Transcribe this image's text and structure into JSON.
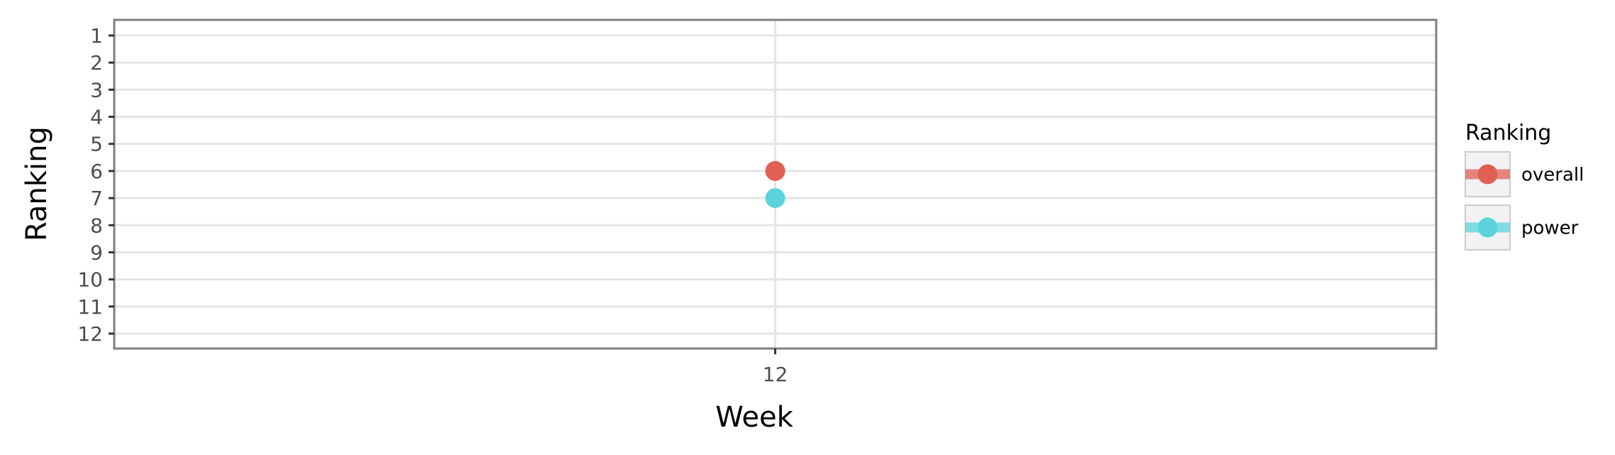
{
  "chart_data": {
    "type": "scatter",
    "xlabel": "Week",
    "ylabel": "Ranking",
    "x_ticks": [
      "12"
    ],
    "y_ticks": [
      "1",
      "2",
      "3",
      "4",
      "5",
      "6",
      "7",
      "8",
      "9",
      "10",
      "11",
      "12"
    ],
    "ylim": [
      12,
      1
    ],
    "y_reversed": true,
    "grid": true,
    "legend": {
      "title": "Ranking",
      "position": "right"
    },
    "series": [
      {
        "name": "overall",
        "color": "#e06055",
        "points": [
          {
            "x": "12",
            "y": 6
          }
        ]
      },
      {
        "name": "power",
        "color": "#5bd3dc",
        "points": [
          {
            "x": "12",
            "y": 7
          }
        ]
      }
    ]
  }
}
